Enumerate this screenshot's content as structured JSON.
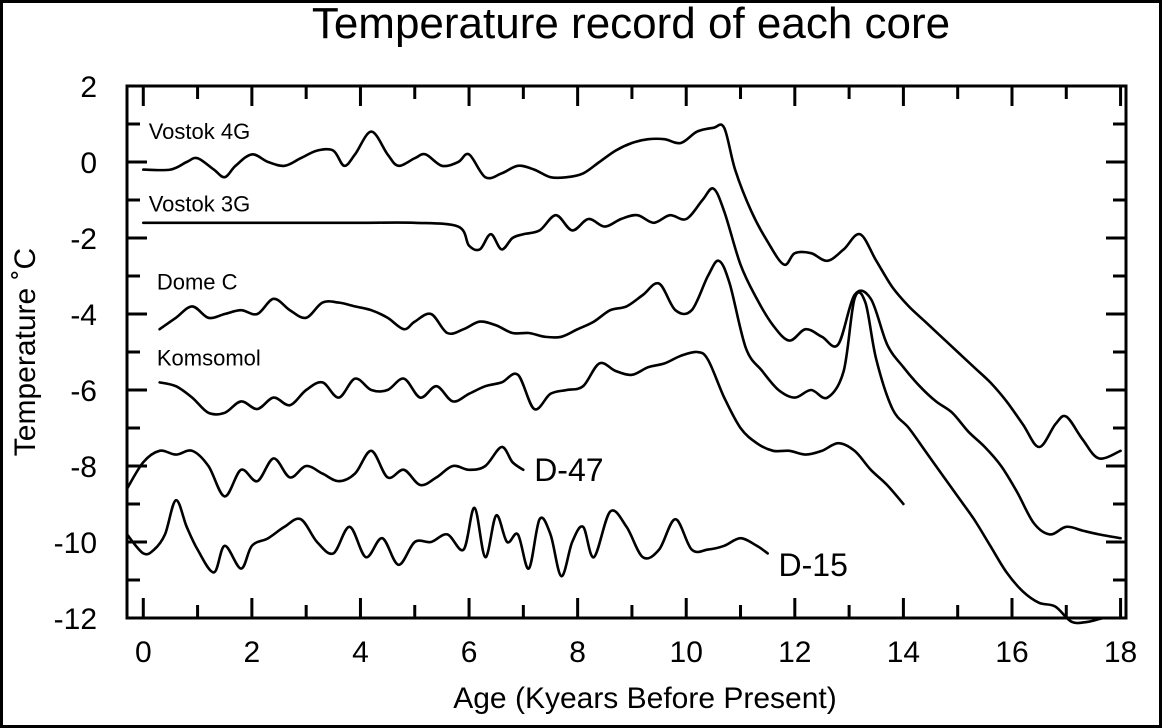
{
  "chart_data": {
    "type": "line",
    "title": "Temperature record of each core",
    "xlabel": "Age (Kyears Before Present)",
    "ylabel": "Temperature ˚C",
    "xlim": [
      -0.3,
      18.1
    ],
    "ylim": [
      -12,
      2
    ],
    "x_ticks": [
      0,
      2,
      4,
      6,
      8,
      10,
      12,
      14,
      16,
      18
    ],
    "y_ticks": [
      2,
      0,
      -2,
      -4,
      -6,
      -8,
      -10,
      -12
    ],
    "x_tick_labels": [
      "0",
      "2",
      "4",
      "6",
      "8",
      "10",
      "12",
      "14",
      "16",
      "18"
    ],
    "y_tick_labels": [
      "2",
      "0",
      "-2",
      "-4",
      "-6",
      "-8",
      "-10",
      "-12"
    ],
    "grid": false,
    "legend": "none",
    "series": [
      {
        "name": "Vostok 4G",
        "label_size": "small",
        "x": [
          0,
          0.5,
          0.8,
          1.0,
          1.3,
          1.5,
          1.7,
          2.0,
          2.3,
          2.6,
          2.9,
          3.2,
          3.5,
          3.7,
          3.9,
          4.2,
          4.5,
          4.7,
          5.0,
          5.2,
          5.5,
          5.8,
          6.0,
          6.3,
          6.6,
          6.9,
          7.2,
          7.5,
          7.8,
          8.1,
          8.4,
          8.7,
          9.0,
          9.3,
          9.6,
          9.9,
          10.2,
          10.5,
          10.7,
          10.9,
          11.2,
          11.5,
          11.8,
          12.0,
          12.3,
          12.6,
          12.9,
          13.2,
          13.5,
          13.8,
          14.1,
          14.4,
          14.7,
          15.0,
          15.3,
          15.6,
          15.9,
          16.2,
          16.5,
          16.8,
          17.0,
          17.3,
          17.6,
          18.0
        ],
        "y": [
          -0.2,
          -0.2,
          0.0,
          0.1,
          -0.2,
          -0.4,
          -0.1,
          0.2,
          0.0,
          -0.1,
          0.1,
          0.3,
          0.3,
          -0.1,
          0.2,
          0.8,
          0.2,
          -0.1,
          0.1,
          0.2,
          -0.1,
          0.0,
          0.2,
          -0.4,
          -0.3,
          -0.1,
          -0.2,
          -0.4,
          -0.4,
          -0.3,
          0.0,
          0.3,
          0.5,
          0.6,
          0.6,
          0.5,
          0.8,
          0.9,
          0.9,
          -0.2,
          -1.3,
          -2.1,
          -2.7,
          -2.4,
          -2.4,
          -2.6,
          -2.3,
          -1.9,
          -2.6,
          -3.3,
          -3.8,
          -4.2,
          -4.6,
          -5.0,
          -5.4,
          -5.8,
          -6.3,
          -6.9,
          -7.5,
          -6.9,
          -6.7,
          -7.3,
          -7.8,
          -7.6
        ]
      },
      {
        "name": "Vostok 3G",
        "label_size": "small",
        "x": [
          0,
          1,
          2,
          3,
          4,
          5,
          5.8,
          6.0,
          6.2,
          6.4,
          6.6,
          6.8,
          7.0,
          7.3,
          7.6,
          7.9,
          8.2,
          8.5,
          8.8,
          9.1,
          9.4,
          9.7,
          10.0,
          10.3,
          10.5,
          10.7,
          11.0,
          11.3,
          11.6,
          11.9,
          12.2,
          12.5,
          12.8,
          13.1,
          13.4,
          13.7,
          14.0,
          14.3,
          14.6,
          14.9,
          15.2,
          15.5,
          15.8,
          16.1,
          16.4,
          16.7,
          17.0,
          17.3,
          17.6,
          18.0
        ],
        "y": [
          -1.6,
          -1.6,
          -1.6,
          -1.6,
          -1.6,
          -1.6,
          -1.7,
          -2.2,
          -2.3,
          -1.9,
          -2.3,
          -2.0,
          -1.9,
          -1.8,
          -1.4,
          -1.8,
          -1.5,
          -1.7,
          -1.5,
          -1.4,
          -1.6,
          -1.4,
          -1.5,
          -1.0,
          -0.7,
          -1.3,
          -2.7,
          -3.6,
          -4.3,
          -4.7,
          -4.4,
          -4.6,
          -4.8,
          -3.5,
          -3.6,
          -4.8,
          -5.4,
          -5.9,
          -6.3,
          -6.6,
          -7.1,
          -7.5,
          -8.0,
          -8.7,
          -9.5,
          -9.8,
          -9.6,
          -9.7,
          -9.8,
          -9.9
        ]
      },
      {
        "name": "Dome C",
        "label_size": "small",
        "x": [
          0.3,
          0.6,
          0.9,
          1.2,
          1.5,
          1.8,
          2.1,
          2.4,
          2.7,
          3.0,
          3.3,
          3.6,
          3.9,
          4.2,
          4.5,
          4.8,
          5.0,
          5.3,
          5.6,
          5.9,
          6.2,
          6.5,
          6.8,
          7.1,
          7.4,
          7.7,
          8.0,
          8.3,
          8.6,
          8.9,
          9.2,
          9.5,
          9.8,
          10.1,
          10.4,
          10.6,
          10.8,
          11.1,
          11.4,
          11.7,
          12.0,
          12.3,
          12.6,
          12.9,
          13.1,
          13.3,
          13.5,
          13.8,
          14.1,
          14.4,
          14.7,
          15.0,
          15.3,
          15.6,
          15.9,
          16.2,
          16.5,
          16.8,
          17.1,
          17.4,
          17.7,
          18.0
        ],
        "y": [
          -4.4,
          -4.1,
          -3.8,
          -4.1,
          -4.0,
          -3.9,
          -4.0,
          -3.6,
          -3.9,
          -4.1,
          -3.7,
          -3.7,
          -3.8,
          -3.9,
          -4.1,
          -4.4,
          -4.2,
          -4.0,
          -4.5,
          -4.4,
          -4.2,
          -4.3,
          -4.5,
          -4.5,
          -4.6,
          -4.6,
          -4.4,
          -4.2,
          -3.9,
          -3.8,
          -3.5,
          -3.2,
          -3.9,
          -3.9,
          -3.0,
          -2.6,
          -3.2,
          -4.9,
          -5.5,
          -6.0,
          -6.2,
          -6.0,
          -6.2,
          -5.5,
          -3.6,
          -3.7,
          -5.2,
          -6.5,
          -7.0,
          -7.6,
          -8.2,
          -8.8,
          -9.4,
          -10.1,
          -10.8,
          -11.3,
          -11.6,
          -11.7,
          -12.1,
          -12.1,
          -12.0,
          -12.0
        ]
      },
      {
        "name": "Komsomol",
        "label_size": "small",
        "x": [
          0.3,
          0.6,
          0.9,
          1.2,
          1.5,
          1.8,
          2.1,
          2.4,
          2.7,
          3.0,
          3.3,
          3.6,
          3.9,
          4.2,
          4.5,
          4.8,
          5.1,
          5.4,
          5.7,
          6.0,
          6.3,
          6.6,
          6.9,
          7.2,
          7.5,
          7.8,
          8.1,
          8.4,
          8.7,
          9.0,
          9.3,
          9.6,
          9.9,
          10.2,
          10.4,
          10.7,
          11.0,
          11.3,
          11.6,
          11.9,
          12.2,
          12.5,
          12.8,
          13.1,
          13.4,
          13.7,
          14.0
        ],
        "y": [
          -5.8,
          -5.9,
          -6.2,
          -6.6,
          -6.6,
          -6.3,
          -6.5,
          -6.2,
          -6.4,
          -6.0,
          -5.8,
          -6.2,
          -5.7,
          -6.0,
          -6.0,
          -5.7,
          -6.2,
          -5.9,
          -6.3,
          -6.1,
          -5.9,
          -5.8,
          -5.6,
          -6.5,
          -6.1,
          -6.0,
          -5.9,
          -5.3,
          -5.5,
          -5.6,
          -5.4,
          -5.3,
          -5.1,
          -5.0,
          -5.2,
          -6.2,
          -7.0,
          -7.4,
          -7.6,
          -7.6,
          -7.7,
          -7.6,
          -7.4,
          -7.6,
          -8.1,
          -8.5,
          -9.0
        ]
      },
      {
        "name": "D-47",
        "label_size": "big",
        "x": [
          -0.3,
          0.0,
          0.3,
          0.6,
          0.9,
          1.2,
          1.5,
          1.8,
          2.1,
          2.4,
          2.7,
          3.0,
          3.3,
          3.6,
          3.9,
          4.2,
          4.5,
          4.8,
          5.1,
          5.4,
          5.7,
          6.0,
          6.3,
          6.6,
          6.8,
          7.0
        ],
        "y": [
          -8.6,
          -7.9,
          -7.6,
          -7.7,
          -7.6,
          -8.0,
          -8.8,
          -8.1,
          -8.4,
          -7.8,
          -8.3,
          -8.0,
          -8.2,
          -8.4,
          -8.2,
          -7.6,
          -8.3,
          -8.1,
          -8.5,
          -8.3,
          -8.0,
          -8.1,
          -8.0,
          -7.5,
          -7.9,
          -8.1
        ]
      },
      {
        "name": "D-15",
        "label_size": "big",
        "x": [
          -0.3,
          0.0,
          0.2,
          0.4,
          0.6,
          0.8,
          1.0,
          1.3,
          1.5,
          1.8,
          2.0,
          2.3,
          2.6,
          2.9,
          3.2,
          3.5,
          3.8,
          4.1,
          4.4,
          4.7,
          5.0,
          5.3,
          5.6,
          5.9,
          6.1,
          6.3,
          6.5,
          6.7,
          6.9,
          7.1,
          7.3,
          7.5,
          7.7,
          7.9,
          8.1,
          8.3,
          8.6,
          8.9,
          9.2,
          9.5,
          9.8,
          10.1,
          10.4,
          10.7,
          11.0,
          11.3,
          11.5
        ],
        "y": [
          -9.8,
          -10.3,
          -10.2,
          -9.8,
          -8.9,
          -9.6,
          -10.2,
          -10.8,
          -10.1,
          -10.7,
          -10.1,
          -9.9,
          -9.6,
          -9.4,
          -10.0,
          -10.3,
          -9.6,
          -10.4,
          -9.9,
          -10.6,
          -10.0,
          -10.0,
          -9.8,
          -10.2,
          -9.1,
          -10.4,
          -9.3,
          -10.0,
          -9.8,
          -10.7,
          -9.4,
          -9.8,
          -10.9,
          -10.0,
          -9.6,
          -10.4,
          -9.2,
          -9.6,
          -10.4,
          -10.2,
          -9.4,
          -10.2,
          -10.2,
          -10.1,
          -9.9,
          -10.1,
          -10.3
        ]
      }
    ]
  }
}
